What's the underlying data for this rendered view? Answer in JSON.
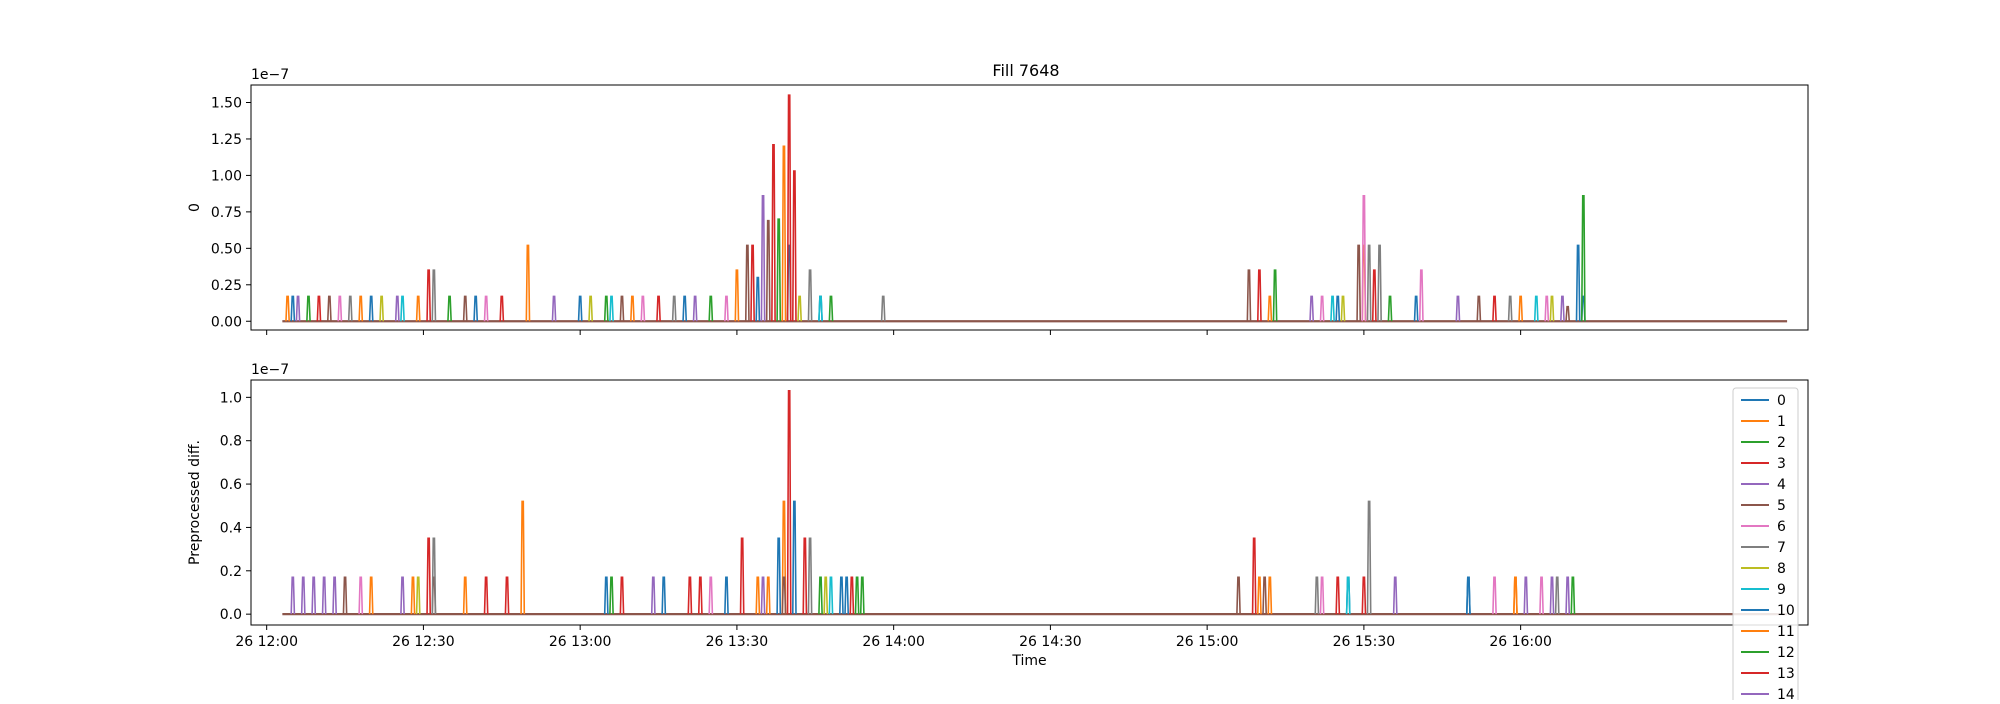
{
  "title": "Fill 7648",
  "colors": [
    "#1f77b4",
    "#ff7f0e",
    "#2ca02c",
    "#d62728",
    "#9467bd",
    "#8c564b",
    "#e377c2",
    "#7f7f7f",
    "#bcbd22",
    "#17becf",
    "#1f77b4",
    "#ff7f0e",
    "#2ca02c",
    "#d62728",
    "#9467bd"
  ],
  "x_tick_labels": [
    "26 12:00",
    "26 12:30",
    "26 13:00",
    "26 13:30",
    "26 14:00",
    "26 14:30",
    "26 15:00",
    "26 15:30",
    "26 16:00"
  ],
  "chart_data": [
    {
      "type": "line",
      "ylabel": "0",
      "offset_text": "1e−7",
      "xlim": [
        "2022-05-26 11:57",
        "2022-05-26 16:55"
      ],
      "ylim": [
        -0.06,
        1.62
      ],
      "yticks": [
        "0.00",
        "0.25",
        "0.50",
        "0.75",
        "1.00",
        "1.25",
        "1.50"
      ],
      "baseline": 0,
      "series": [
        {
          "index": 0,
          "spikes": [
            [
              "12:05",
              0.17
            ],
            [
              "12:20",
              0.17
            ],
            [
              "12:40",
              0.17
            ],
            [
              "13:00",
              0.17
            ],
            [
              "13:20",
              0.17
            ],
            [
              "13:34",
              0.3
            ],
            [
              "13:40",
              0.52
            ],
            [
              "13:46",
              0.17
            ],
            [
              "15:25",
              0.17
            ],
            [
              "15:40",
              0.17
            ],
            [
              "16:11",
              0.52
            ],
            [
              "16:12",
              0.17
            ]
          ]
        },
        {
          "index": 1,
          "spikes": [
            [
              "12:04",
              0.17
            ],
            [
              "12:18",
              0.17
            ],
            [
              "12:29",
              0.17
            ],
            [
              "12:50",
              0.52
            ],
            [
              "13:10",
              0.17
            ],
            [
              "13:30",
              0.35
            ],
            [
              "13:39",
              1.2
            ],
            [
              "15:12",
              0.17
            ],
            [
              "15:30",
              0.52
            ],
            [
              "16:00",
              0.17
            ]
          ]
        },
        {
          "index": 2,
          "spikes": [
            [
              "12:08",
              0.17
            ],
            [
              "12:35",
              0.17
            ],
            [
              "13:05",
              0.17
            ],
            [
              "13:25",
              0.17
            ],
            [
              "13:38",
              0.7
            ],
            [
              "13:48",
              0.17
            ],
            [
              "15:13",
              0.35
            ],
            [
              "15:35",
              0.17
            ],
            [
              "16:12",
              0.86
            ]
          ]
        },
        {
          "index": 3,
          "spikes": [
            [
              "12:10",
              0.17
            ],
            [
              "12:31",
              0.35
            ],
            [
              "12:45",
              0.17
            ],
            [
              "13:15",
              0.17
            ],
            [
              "13:33",
              0.52
            ],
            [
              "13:37",
              1.21
            ],
            [
              "13:40",
              1.55
            ],
            [
              "13:41",
              1.03
            ],
            [
              "15:10",
              0.35
            ],
            [
              "15:32",
              0.35
            ],
            [
              "15:55",
              0.17
            ]
          ]
        },
        {
          "index": 4,
          "spikes": [
            [
              "12:06",
              0.17
            ],
            [
              "12:25",
              0.17
            ],
            [
              "12:55",
              0.17
            ],
            [
              "13:22",
              0.17
            ],
            [
              "13:35",
              0.86
            ],
            [
              "15:20",
              0.17
            ],
            [
              "15:48",
              0.17
            ],
            [
              "16:08",
              0.17
            ]
          ]
        },
        {
          "index": 5,
          "spikes": [
            [
              "12:12",
              0.17
            ],
            [
              "12:38",
              0.17
            ],
            [
              "13:08",
              0.17
            ],
            [
              "13:32",
              0.52
            ],
            [
              "13:36",
              0.69
            ],
            [
              "15:08",
              0.35
            ],
            [
              "15:29",
              0.52
            ],
            [
              "15:52",
              0.17
            ],
            [
              "16:09",
              0.1
            ]
          ]
        },
        {
          "index": 6,
          "spikes": [
            [
              "12:14",
              0.17
            ],
            [
              "12:42",
              0.17
            ],
            [
              "13:12",
              0.17
            ],
            [
              "13:28",
              0.17
            ],
            [
              "15:22",
              0.17
            ],
            [
              "15:30",
              0.86
            ],
            [
              "15:41",
              0.35
            ],
            [
              "16:05",
              0.17
            ]
          ]
        },
        {
          "index": 7,
          "spikes": [
            [
              "12:16",
              0.17
            ],
            [
              "12:32",
              0.35
            ],
            [
              "13:18",
              0.17
            ],
            [
              "13:44",
              0.35
            ],
            [
              "13:58",
              0.17
            ],
            [
              "15:31",
              0.52
            ],
            [
              "15:33",
              0.52
            ],
            [
              "15:58",
              0.17
            ]
          ]
        },
        {
          "index": 8,
          "spikes": [
            [
              "12:22",
              0.17
            ],
            [
              "13:02",
              0.17
            ],
            [
              "13:42",
              0.17
            ],
            [
              "15:26",
              0.17
            ],
            [
              "16:06",
              0.17
            ]
          ]
        },
        {
          "index": 9,
          "spikes": [
            [
              "12:26",
              0.17
            ],
            [
              "13:06",
              0.17
            ],
            [
              "13:46",
              0.17
            ],
            [
              "15:24",
              0.17
            ],
            [
              "16:03",
              0.17
            ]
          ]
        }
      ]
    },
    {
      "type": "line",
      "ylabel": "Preprocessed diff.",
      "xlabel": "Time",
      "offset_text": "1e−7",
      "xlim": [
        "2022-05-26 11:57",
        "2022-05-26 16:55"
      ],
      "ylim": [
        -0.05,
        1.08
      ],
      "yticks": [
        "0.0",
        "0.2",
        "0.4",
        "0.6",
        "0.8",
        "1.0"
      ],
      "baseline": 0,
      "legend": {
        "placement": "right",
        "entries": [
          "0",
          "1",
          "2",
          "3",
          "4",
          "5",
          "6",
          "7",
          "8",
          "9",
          "10",
          "11",
          "12",
          "13",
          "14"
        ]
      },
      "series": [
        {
          "index": 0,
          "spikes": [
            [
              "13:05",
              0.17
            ],
            [
              "13:16",
              0.17
            ],
            [
              "13:38",
              0.35
            ],
            [
              "13:41",
              0.52
            ],
            [
              "13:50",
              0.17
            ],
            [
              "15:27",
              0.17
            ],
            [
              "15:50",
              0.17
            ]
          ]
        },
        {
          "index": 1,
          "spikes": [
            [
              "12:28",
              0.17
            ],
            [
              "12:38",
              0.17
            ],
            [
              "12:49",
              0.52
            ],
            [
              "13:36",
              0.17
            ],
            [
              "13:39",
              0.52
            ],
            [
              "15:10",
              0.17
            ],
            [
              "15:59",
              0.17
            ]
          ]
        },
        {
          "index": 2,
          "spikes": [
            [
              "13:06",
              0.17
            ],
            [
              "13:46",
              0.17
            ],
            [
              "13:53",
              0.17
            ],
            [
              "16:10",
              0.17
            ]
          ]
        },
        {
          "index": 3,
          "spikes": [
            [
              "12:31",
              0.35
            ],
            [
              "12:42",
              0.17
            ],
            [
              "13:08",
              0.17
            ],
            [
              "13:21",
              0.17
            ],
            [
              "13:31",
              0.35
            ],
            [
              "13:40",
              1.03
            ],
            [
              "13:43",
              0.35
            ],
            [
              "13:52",
              0.17
            ],
            [
              "15:09",
              0.35
            ],
            [
              "15:30",
              0.17
            ]
          ]
        },
        {
          "index": 4,
          "spikes": [
            [
              "12:05",
              0.17
            ],
            [
              "12:07",
              0.17
            ],
            [
              "12:09",
              0.17
            ],
            [
              "12:13",
              0.17
            ],
            [
              "12:26",
              0.17
            ],
            [
              "13:35",
              0.17
            ],
            [
              "15:36",
              0.17
            ],
            [
              "16:01",
              0.17
            ],
            [
              "16:09",
              0.17
            ]
          ]
        },
        {
          "index": 5,
          "spikes": [
            [
              "12:15",
              0.17
            ],
            [
              "12:32",
              0.17
            ],
            [
              "13:39",
              0.17
            ],
            [
              "15:06",
              0.17
            ],
            [
              "15:11",
              0.17
            ]
          ]
        },
        {
          "index": 6,
          "spikes": [
            [
              "12:18",
              0.17
            ],
            [
              "13:25",
              0.17
            ],
            [
              "15:22",
              0.17
            ],
            [
              "15:55",
              0.17
            ],
            [
              "16:04",
              0.17
            ]
          ]
        },
        {
          "index": 7,
          "spikes": [
            [
              "12:32",
              0.35
            ],
            [
              "13:44",
              0.35
            ],
            [
              "15:21",
              0.17
            ],
            [
              "15:31",
              0.52
            ],
            [
              "16:07",
              0.17
            ]
          ]
        },
        {
          "index": 8,
          "spikes": [
            [
              "12:29",
              0.17
            ],
            [
              "13:47",
              0.17
            ]
          ]
        },
        {
          "index": 9,
          "spikes": [
            [
              "13:48",
              0.17
            ],
            [
              "15:27",
              0.17
            ]
          ]
        },
        {
          "index": 10,
          "spikes": [
            [
              "13:28",
              0.17
            ],
            [
              "13:51",
              0.17
            ],
            [
              "15:50",
              0.17
            ]
          ]
        },
        {
          "index": 11,
          "spikes": [
            [
              "12:20",
              0.17
            ],
            [
              "13:34",
              0.17
            ],
            [
              "15:12",
              0.17
            ],
            [
              "15:59",
              0.17
            ]
          ]
        },
        {
          "index": 12,
          "spikes": [
            [
              "13:54",
              0.17
            ]
          ]
        },
        {
          "index": 13,
          "spikes": [
            [
              "12:46",
              0.17
            ],
            [
              "13:23",
              0.17
            ],
            [
              "15:25",
              0.17
            ]
          ]
        },
        {
          "index": 14,
          "spikes": [
            [
              "12:11",
              0.17
            ],
            [
              "13:14",
              0.17
            ],
            [
              "16:06",
              0.17
            ]
          ]
        }
      ]
    }
  ]
}
